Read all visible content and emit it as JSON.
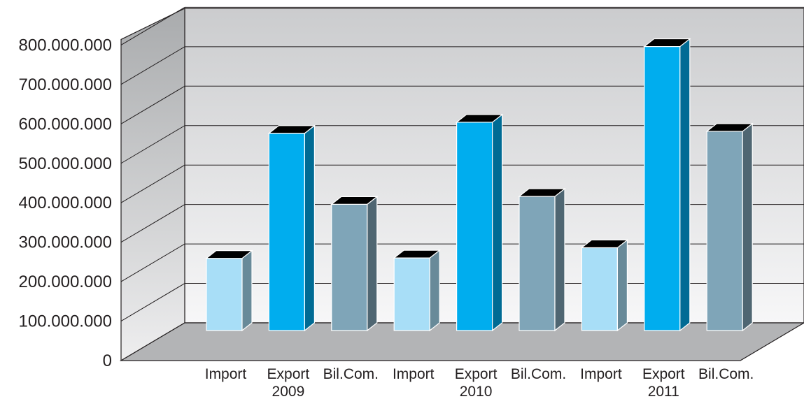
{
  "chart_data": {
    "type": "bar",
    "three_d": true,
    "grid": true,
    "legend": "none",
    "ylim": [
      0,
      800000000
    ],
    "y_ticks": [
      "0",
      "100.000.000",
      "200.000.000",
      "300.000.000",
      "400.000.000",
      "500.000.000",
      "600.000.000",
      "700.000.000",
      "800.000.000"
    ],
    "categories": [
      {
        "label": "Import",
        "group_label": ""
      },
      {
        "label": "Export",
        "group_label": "2009"
      },
      {
        "label": "Bil.Com.",
        "group_label": ""
      },
      {
        "label": "Import",
        "group_label": ""
      },
      {
        "label": "Export",
        "group_label": "2010"
      },
      {
        "label": "Bil.Com.",
        "group_label": ""
      },
      {
        "label": "Import",
        "group_label": ""
      },
      {
        "label": "Export",
        "group_label": "2011"
      },
      {
        "label": "Bil.Com.",
        "group_label": ""
      }
    ],
    "values": [
      183000000,
      500000000,
      320000000,
      184000000,
      528000000,
      340000000,
      210000000,
      720000000,
      505000000
    ],
    "colors": {
      "Import": "#a8def7",
      "Export": "#00adee",
      "Bil.Com.": "#7fa5b8"
    }
  }
}
